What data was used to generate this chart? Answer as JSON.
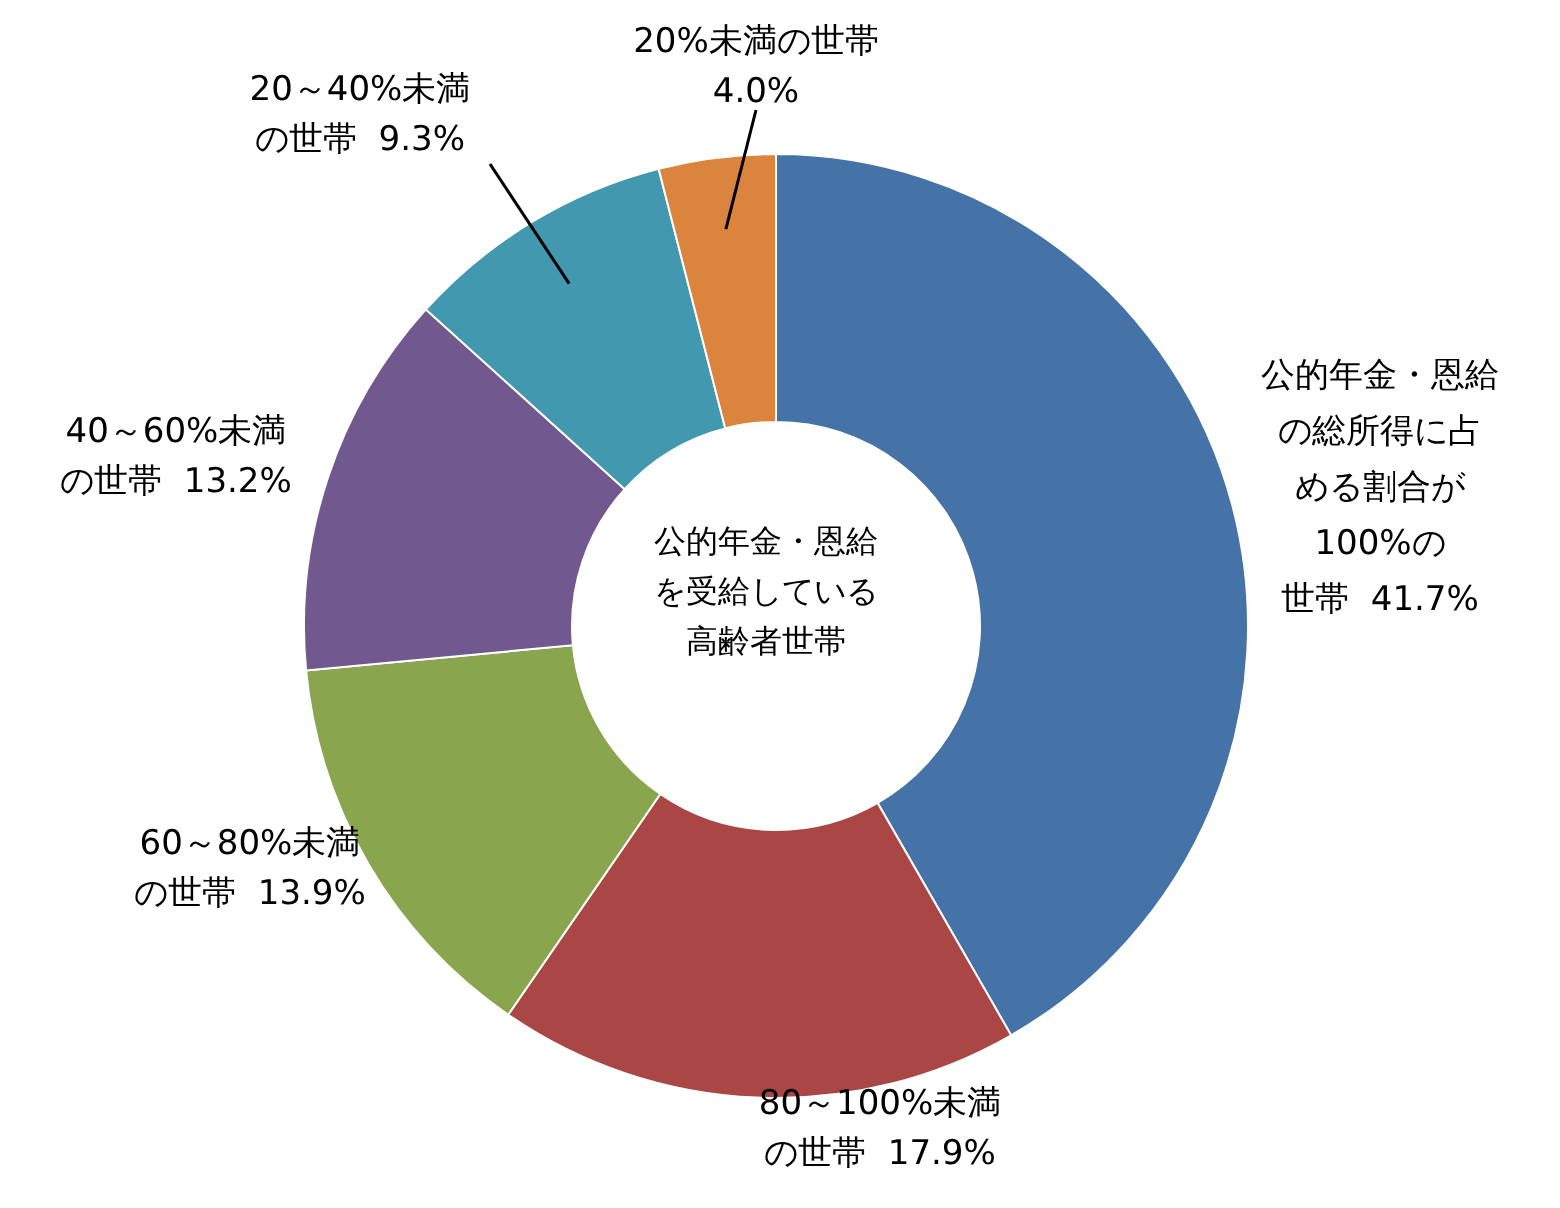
{
  "chart_data": {
    "type": "donut",
    "categories": [
      "公的年金・恩給の総所得に占める割合が100%の世帯",
      "80～100%未満の世帯",
      "60～80%未満の世帯",
      "40～60%未満の世帯",
      "20～40%未満の世帯",
      "20%未満の世帯"
    ],
    "values": [
      41.7,
      17.9,
      13.9,
      13.2,
      9.3,
      4.0
    ],
    "value_labels": [
      "41.7%",
      "17.9%",
      "13.9%",
      "13.2%",
      "9.3%",
      "4.0%"
    ],
    "colors": [
      "#4572a7",
      "#aa4643",
      "#89a54e",
      "#71588f",
      "#4198af",
      "#db843d"
    ],
    "annotations": [
      "公的年金・恩給を受給している高齢者世帯"
    ]
  }
}
